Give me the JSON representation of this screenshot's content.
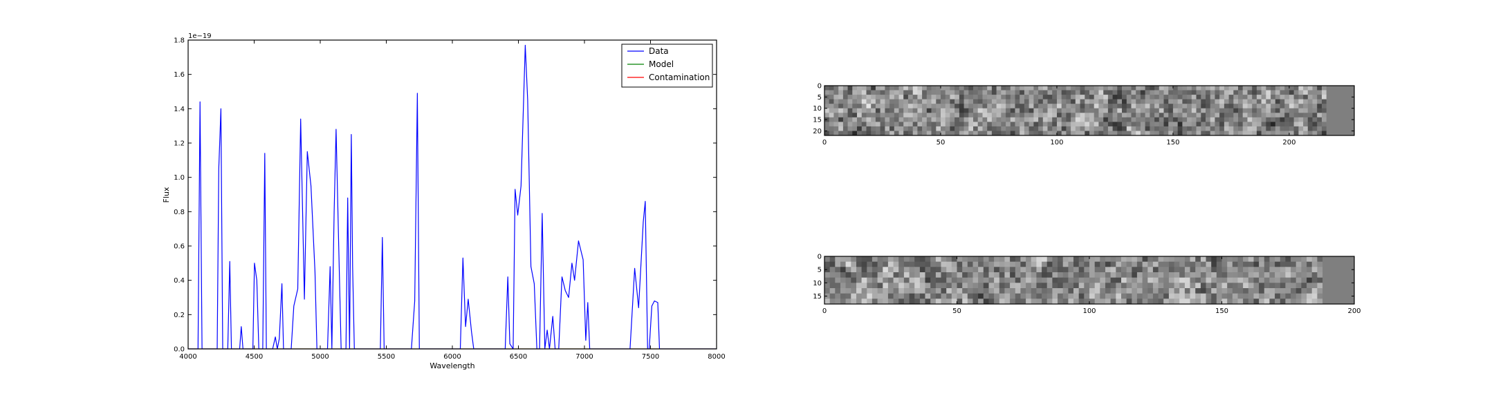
{
  "chart_data": [
    {
      "type": "line",
      "xlabel": "Wavelength",
      "ylabel": "Flux",
      "offset_text": "1e−19",
      "xlim": [
        4000,
        8000
      ],
      "ylim": [
        0,
        1.8
      ],
      "xticks": [
        4000,
        4500,
        5000,
        5500,
        6000,
        6500,
        7000,
        7500,
        8000
      ],
      "yticks": [
        "0.0",
        "0.2",
        "0.4",
        "0.6",
        "0.8",
        "1.0",
        "1.2",
        "1.4",
        "1.6",
        "1.8"
      ],
      "legend": {
        "placement": "top-right",
        "entries": [
          "Data",
          "Model",
          "Contamination"
        ]
      },
      "series": [
        {
          "name": "Data",
          "color": "#0000ff",
          "points": [
            [
              4000,
              0
            ],
            [
              4075,
              0
            ],
            [
              4090,
              1.44
            ],
            [
              4105,
              0
            ],
            [
              4220,
              0
            ],
            [
              4232,
              1.05
            ],
            [
              4248,
              1.4
            ],
            [
              4262,
              0
            ],
            [
              4300,
              0
            ],
            [
              4315,
              0.51
            ],
            [
              4328,
              0
            ],
            [
              4390,
              0
            ],
            [
              4402,
              0.13
            ],
            [
              4415,
              0
            ],
            [
              4490,
              0
            ],
            [
              4502,
              0.5
            ],
            [
              4520,
              0.4
            ],
            [
              4535,
              0
            ],
            [
              4565,
              0
            ],
            [
              4580,
              1.14
            ],
            [
              4592,
              0
            ],
            [
              4640,
              0
            ],
            [
              4660,
              0.07
            ],
            [
              4675,
              0
            ],
            [
              4690,
              0.06
            ],
            [
              4710,
              0.38
            ],
            [
              4722,
              0
            ],
            [
              4780,
              0
            ],
            [
              4800,
              0.25
            ],
            [
              4830,
              0.35
            ],
            [
              4852,
              1.34
            ],
            [
              4880,
              0.29
            ],
            [
              4902,
              1.15
            ],
            [
              4930,
              0.95
            ],
            [
              4960,
              0.45
            ],
            [
              4975,
              0
            ],
            [
              5055,
              0
            ],
            [
              5075,
              0.48
            ],
            [
              5088,
              0
            ],
            [
              5105,
              0.8
            ],
            [
              5120,
              1.28
            ],
            [
              5140,
              0.6
            ],
            [
              5158,
              0
            ],
            [
              5195,
              0
            ],
            [
              5208,
              0.88
            ],
            [
              5222,
              0
            ],
            [
              5235,
              1.25
            ],
            [
              5245,
              0.48
            ],
            [
              5258,
              0
            ],
            [
              5455,
              0
            ],
            [
              5470,
              0.65
            ],
            [
              5484,
              0
            ],
            [
              5690,
              0
            ],
            [
              5715,
              0.28
            ],
            [
              5735,
              1.49
            ],
            [
              5750,
              0
            ],
            [
              6060,
              0
            ],
            [
              6080,
              0.53
            ],
            [
              6100,
              0.13
            ],
            [
              6120,
              0.29
            ],
            [
              6145,
              0.1
            ],
            [
              6162,
              0
            ],
            [
              6400,
              0
            ],
            [
              6420,
              0.42
            ],
            [
              6435,
              0.03
            ],
            [
              6460,
              0
            ],
            [
              6475,
              0.93
            ],
            [
              6495,
              0.78
            ],
            [
              6520,
              0.95
            ],
            [
              6552,
              1.77
            ],
            [
              6570,
              1.45
            ],
            [
              6595,
              0.48
            ],
            [
              6620,
              0.38
            ],
            [
              6640,
              0
            ],
            [
              6660,
              0
            ],
            [
              6680,
              0.79
            ],
            [
              6700,
              0
            ],
            [
              6718,
              0.11
            ],
            [
              6735,
              0
            ],
            [
              6760,
              0.19
            ],
            [
              6778,
              0
            ],
            [
              6805,
              0
            ],
            [
              6830,
              0.42
            ],
            [
              6855,
              0.34
            ],
            [
              6880,
              0.3
            ],
            [
              6905,
              0.5
            ],
            [
              6925,
              0.4
            ],
            [
              6955,
              0.63
            ],
            [
              6990,
              0.52
            ],
            [
              7010,
              0.05
            ],
            [
              7025,
              0.27
            ],
            [
              7040,
              0
            ],
            [
              7200,
              0
            ],
            [
              7345,
              0
            ],
            [
              7380,
              0.47
            ],
            [
              7410,
              0.24
            ],
            [
              7445,
              0.74
            ],
            [
              7460,
              0.86
            ],
            [
              7478,
              0
            ],
            [
              7490,
              0
            ],
            [
              7510,
              0.25
            ],
            [
              7530,
              0.28
            ],
            [
              7555,
              0.27
            ],
            [
              7568,
              0
            ],
            [
              8000,
              0
            ]
          ]
        },
        {
          "name": "Model",
          "color": "#008000",
          "points": [
            [
              4000,
              0
            ],
            [
              8000,
              0
            ]
          ]
        },
        {
          "name": "Contamination",
          "color": "#ff0000",
          "points": [
            [
              4000,
              0
            ],
            [
              8000,
              0
            ]
          ]
        }
      ]
    },
    {
      "type": "heatmap",
      "colormap": "gray",
      "xlim": [
        0,
        228
      ],
      "ylim": [
        22,
        0
      ],
      "data_columns": 216,
      "xticks": [
        0,
        50,
        100,
        150,
        200
      ],
      "yticks": [
        0,
        5,
        10,
        15,
        20
      ],
      "fill_value_color": "#7f7f7f"
    },
    {
      "type": "heatmap",
      "colormap": "gray",
      "xlim": [
        0,
        200
      ],
      "ylim": [
        18,
        0
      ],
      "data_columns": 188,
      "xticks": [
        0,
        50,
        100,
        150,
        200
      ],
      "yticks": [
        0,
        5,
        10,
        15
      ],
      "fill_value_color": "#7f7f7f"
    }
  ]
}
